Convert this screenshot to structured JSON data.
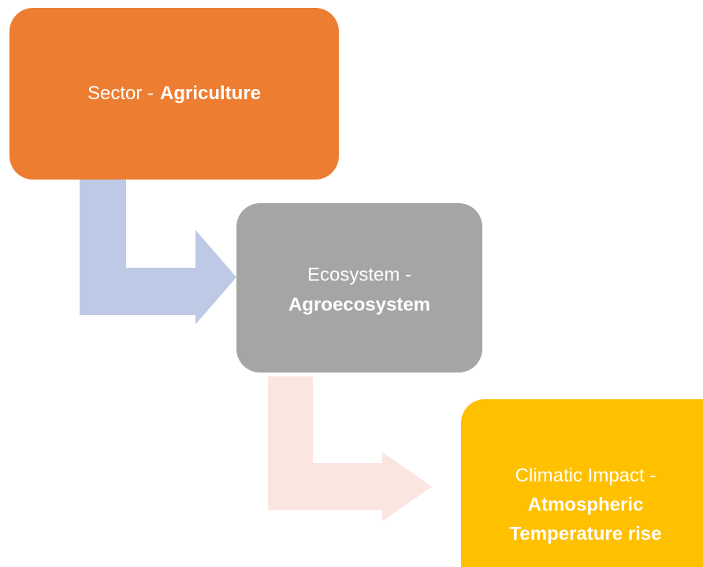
{
  "nodes": [
    {
      "prefix": "Sector -",
      "emphasis": [
        "Agriculture"
      ]
    },
    {
      "prefix": "Ecosystem -",
      "emphasis": [
        "Agroecosystem"
      ]
    },
    {
      "prefix": "Climatic Impact -",
      "emphasis": [
        "Atmospheric",
        "Temperature rise"
      ]
    }
  ]
}
